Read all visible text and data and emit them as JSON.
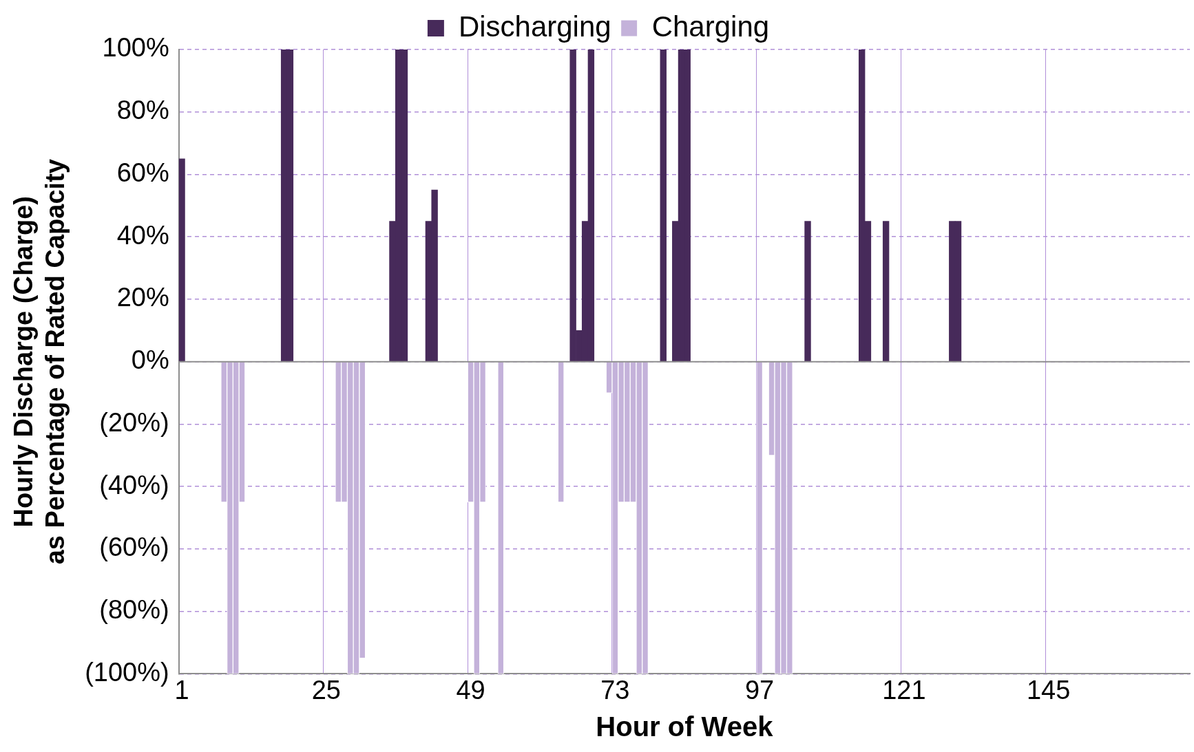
{
  "chart_data": {
    "type": "bar",
    "xlabel": "Hour of Week",
    "ylabel": "Hourly Discharge (Charge)\nas Percentage of Rated Capacity",
    "categories": [
      "1",
      null,
      null,
      null,
      null,
      null,
      null,
      null,
      null,
      null,
      null,
      null,
      null,
      null,
      null,
      null,
      null,
      null,
      null,
      null,
      null,
      null,
      null,
      null,
      "25",
      null,
      null,
      null,
      null,
      null,
      null,
      null,
      null,
      null,
      null,
      null,
      null,
      null,
      null,
      null,
      null,
      null,
      null,
      null,
      null,
      null,
      null,
      null,
      "49",
      null,
      null,
      null,
      null,
      null,
      null,
      null,
      null,
      null,
      null,
      null,
      null,
      null,
      null,
      null,
      null,
      null,
      null,
      null,
      null,
      null,
      null,
      null,
      "73",
      null,
      null,
      null,
      null,
      null,
      null,
      null,
      null,
      null,
      null,
      null,
      null,
      null,
      null,
      null,
      null,
      null,
      null,
      null,
      null,
      null,
      null,
      null,
      "97",
      null,
      null,
      null,
      null,
      null,
      null,
      null,
      null,
      null,
      null,
      null,
      null,
      null,
      null,
      null,
      null,
      null,
      null,
      null,
      null,
      null,
      null,
      null,
      "121",
      null,
      null,
      null,
      null,
      null,
      null,
      null,
      null,
      null,
      null,
      null,
      null,
      null,
      null,
      null,
      null,
      null,
      null,
      null,
      null,
      null,
      null,
      null,
      "145",
      null,
      null,
      null,
      null,
      null,
      null,
      null,
      null,
      null,
      null,
      null,
      null,
      null,
      null,
      null,
      null,
      null,
      null,
      null,
      null,
      null,
      null,
      null
    ],
    "series": [
      {
        "name": "Discharging",
        "color": "#472a5a",
        "values": [
          65,
          null,
          null,
          null,
          null,
          null,
          null,
          null,
          null,
          null,
          null,
          null,
          null,
          null,
          null,
          null,
          null,
          100,
          100,
          null,
          null,
          null,
          null,
          null,
          null,
          null,
          null,
          null,
          null,
          null,
          null,
          null,
          null,
          null,
          null,
          45,
          100,
          100,
          null,
          null,
          null,
          45,
          55,
          null,
          null,
          null,
          null,
          null,
          null,
          null,
          null,
          null,
          null,
          null,
          null,
          null,
          null,
          null,
          null,
          null,
          null,
          null,
          null,
          null,
          null,
          100,
          10,
          45,
          100,
          null,
          null,
          null,
          null,
          null,
          null,
          null,
          null,
          null,
          null,
          null,
          100,
          null,
          45,
          100,
          100,
          null,
          null,
          null,
          null,
          null,
          null,
          null,
          null,
          null,
          null,
          null,
          null,
          null,
          null,
          null,
          null,
          null,
          null,
          null,
          45,
          null,
          null,
          null,
          null,
          null,
          null,
          null,
          null,
          100,
          45,
          null,
          null,
          45,
          null,
          null,
          null,
          null,
          null,
          null,
          null,
          null,
          null,
          null,
          45,
          45,
          null,
          null,
          null,
          null,
          null,
          null,
          null,
          null,
          null,
          null,
          null,
          null,
          null,
          null,
          null,
          null,
          null,
          null,
          null,
          null,
          null,
          null,
          null,
          null,
          null,
          null,
          null,
          null,
          null,
          null,
          null,
          null,
          null,
          null,
          null,
          null,
          null,
          null
        ]
      },
      {
        "name": "Charging",
        "color": "#c4b2da",
        "values": [
          null,
          null,
          null,
          null,
          null,
          null,
          null,
          -45,
          -100,
          -100,
          -45,
          null,
          null,
          null,
          null,
          null,
          null,
          null,
          null,
          null,
          null,
          null,
          null,
          null,
          null,
          null,
          -45,
          -45,
          -100,
          -100,
          -95,
          null,
          null,
          null,
          null,
          null,
          null,
          null,
          null,
          null,
          null,
          null,
          null,
          null,
          null,
          null,
          null,
          null,
          -45,
          -100,
          -45,
          null,
          null,
          -100,
          null,
          null,
          null,
          null,
          null,
          null,
          null,
          null,
          null,
          -45,
          null,
          null,
          null,
          null,
          null,
          null,
          null,
          -10,
          -100,
          -45,
          -45,
          -45,
          -100,
          -100,
          null,
          null,
          null,
          null,
          null,
          null,
          null,
          null,
          null,
          null,
          null,
          null,
          null,
          null,
          null,
          null,
          null,
          null,
          -100,
          null,
          -30,
          -100,
          -100,
          -100,
          null,
          null,
          null,
          null,
          null,
          null,
          null,
          null,
          null,
          null,
          null,
          null,
          null,
          null,
          null,
          null,
          null,
          null,
          null,
          null,
          null,
          null,
          null,
          null,
          null,
          null,
          null,
          null,
          null,
          null,
          null,
          null,
          null,
          null,
          null,
          null,
          null,
          null,
          null,
          null,
          null,
          null,
          null,
          null,
          null,
          null,
          null,
          null,
          null,
          null,
          null,
          null,
          null,
          null,
          null,
          null,
          null,
          null,
          null,
          null,
          null,
          null,
          null,
          null,
          null,
          null
        ]
      }
    ],
    "ylim": [
      -100,
      100
    ],
    "yticks": [
      {
        "value": -100,
        "label": "(100%)"
      },
      {
        "value": -80,
        "label": "(80%)"
      },
      {
        "value": -60,
        "label": "(60%)"
      },
      {
        "value": -40,
        "label": "(40%)"
      },
      {
        "value": -20,
        "label": "(20%)"
      },
      {
        "value": 0,
        "label": "0%"
      },
      {
        "value": 20,
        "label": "20%"
      },
      {
        "value": 40,
        "label": "40%"
      },
      {
        "value": 60,
        "label": "60%"
      },
      {
        "value": 80,
        "label": "80%"
      },
      {
        "value": 100,
        "label": "100%"
      }
    ],
    "ref_lines": [
      {
        "axis": "y",
        "value": 0,
        "color": "#8e8e8e"
      }
    ],
    "grid": true,
    "legend": "top"
  }
}
